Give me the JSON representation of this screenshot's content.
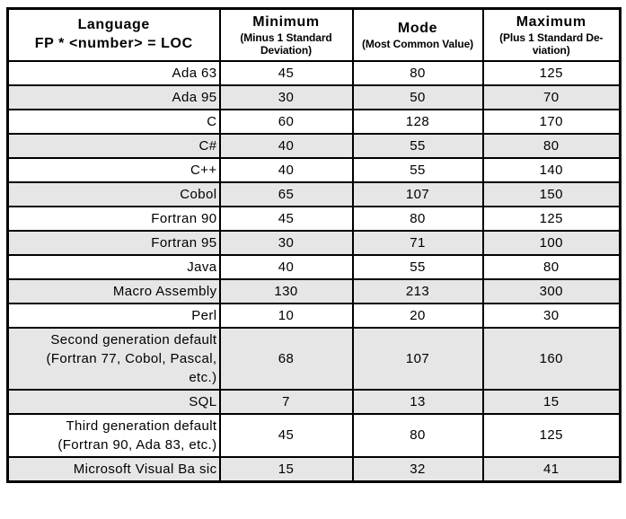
{
  "table": {
    "columns": [
      {
        "title": "Language",
        "subtitle": "FP * <number> = LOC"
      },
      {
        "title": "Minimum",
        "subtitle": "(Minus 1 Standard Deviation)"
      },
      {
        "title": "Mode",
        "subtitle": "(Most Common Value)"
      },
      {
        "title": "Maximum",
        "subtitle": "(Plus 1 Standard De-viation)"
      }
    ],
    "rows": [
      {
        "language": "Ada 63",
        "minimum": "45",
        "mode": "80",
        "maximum": "125",
        "shaded": false
      },
      {
        "language": "Ada 95",
        "minimum": "30",
        "mode": "50",
        "maximum": "70",
        "shaded": true
      },
      {
        "language": "C",
        "minimum": "60",
        "mode": "128",
        "maximum": "170",
        "shaded": false
      },
      {
        "language": "C#",
        "minimum": "40",
        "mode": "55",
        "maximum": "80",
        "shaded": true
      },
      {
        "language": "C++",
        "minimum": "40",
        "mode": "55",
        "maximum": "140",
        "shaded": false
      },
      {
        "language": "Cobol",
        "minimum": "65",
        "mode": "107",
        "maximum": "150",
        "shaded": true
      },
      {
        "language": "Fortran 90",
        "minimum": "45",
        "mode": "80",
        "maximum": "125",
        "shaded": false
      },
      {
        "language": "Fortran 95",
        "minimum": "30",
        "mode": "71",
        "maximum": "100",
        "shaded": true
      },
      {
        "language": "Java",
        "minimum": "40",
        "mode": "55",
        "maximum": "80",
        "shaded": false
      },
      {
        "language": "Macro Assembly",
        "minimum": "130",
        "mode": "213",
        "maximum": "300",
        "shaded": true
      },
      {
        "language": "Perl",
        "minimum": "10",
        "mode": "20",
        "maximum": "30",
        "shaded": false
      },
      {
        "language": "Second generation default (Fortran 77, Cobol, Pascal, etc.)",
        "minimum": "68",
        "mode": "107",
        "maximum": "160",
        "shaded": true
      },
      {
        "language": "SQL",
        "minimum": "7",
        "mode": "13",
        "maximum": "15",
        "shaded": true
      },
      {
        "language": "Third generation default (Fortran 90, Ada 83, etc.)",
        "minimum": "45",
        "mode": "80",
        "maximum": "125",
        "shaded": false
      },
      {
        "language": "Microsoft Visual Ba sic",
        "minimum": "15",
        "mode": "32",
        "maximum": "41",
        "shaded": true
      }
    ],
    "colors": {
      "shaded_row": "#e6e6e6",
      "row_default": "#ffffff",
      "border": "#000000"
    }
  },
  "chart_data": {
    "type": "table",
    "title": "Language FP * <number> = LOC",
    "columns": [
      "Language",
      "Minimum (Minus 1 Standard Deviation)",
      "Mode (Most Common Value)",
      "Maximum (Plus 1 Standard Deviation)"
    ],
    "rows": [
      [
        "Ada 63",
        45,
        80,
        125
      ],
      [
        "Ada 95",
        30,
        50,
        70
      ],
      [
        "C",
        60,
        128,
        170
      ],
      [
        "C#",
        40,
        55,
        80
      ],
      [
        "C++",
        40,
        55,
        140
      ],
      [
        "Cobol",
        65,
        107,
        150
      ],
      [
        "Fortran 90",
        45,
        80,
        125
      ],
      [
        "Fortran 95",
        30,
        71,
        100
      ],
      [
        "Java",
        40,
        55,
        80
      ],
      [
        "Macro Assembly",
        130,
        213,
        300
      ],
      [
        "Perl",
        10,
        20,
        30
      ],
      [
        "Second generation default (Fortran 77, Cobol, Pascal, etc.)",
        68,
        107,
        160
      ],
      [
        "SQL",
        7,
        13,
        15
      ],
      [
        "Third generation default (Fortran 90, Ada 83, etc.)",
        45,
        80,
        125
      ],
      [
        "Microsoft Visual Ba sic",
        15,
        32,
        41
      ]
    ]
  }
}
